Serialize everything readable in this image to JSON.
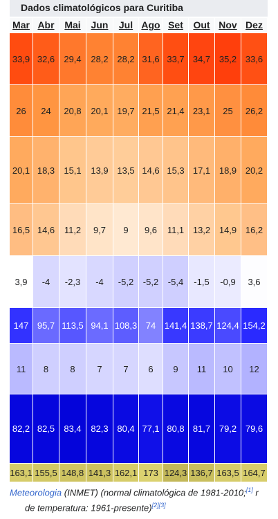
{
  "title": "Dados climatológicos para Curitiba",
  "months": [
    "Mar",
    "Abr",
    "Mai",
    "Jun",
    "Jul",
    "Ago",
    "Set",
    "Out",
    "Nov",
    "Dez"
  ],
  "rows": [
    {
      "cells": [
        "33,9",
        "32,6",
        "29,4",
        "28,2",
        "28,2",
        "31,6",
        "33,7",
        "34,7",
        "35,2",
        "33,6"
      ],
      "colors": [
        "#ff4c10",
        "#ff5c19",
        "#ff782c",
        "#ff8232",
        "#ff8232",
        "#ff6420",
        "#ff4e12",
        "#ff4510",
        "#ff3f0c",
        "#ff5014"
      ],
      "text_color": "#202122"
    },
    {
      "cells": [
        "26",
        "24",
        "20,8",
        "20,1",
        "19,7",
        "21,5",
        "21,4",
        "23,1",
        "25",
        "26,2"
      ],
      "colors": [
        "#ff8c3a",
        "#ff9541",
        "#ffa556",
        "#ffaa5c",
        "#ffac60",
        "#ffa050",
        "#ffa151",
        "#ff9949",
        "#ff9040",
        "#ff8b39"
      ],
      "text_color": "#202122"
    },
    {
      "cells": [
        "20,1",
        "18,3",
        "15,1",
        "13,9",
        "13,5",
        "14,6",
        "15,3",
        "17,1",
        "18,9",
        "20,2"
      ],
      "colors": [
        "#ffaa5e",
        "#ffb26d",
        "#ffc68c",
        "#ffcb97",
        "#ffcd99",
        "#ffc893",
        "#ffc48b",
        "#ffba7b",
        "#ffb06a",
        "#ffaa5e"
      ],
      "text_color": "#202122"
    },
    {
      "cells": [
        "16,5",
        "14,6",
        "11,2",
        "9,7",
        "9",
        "9,6",
        "11,1",
        "13,2",
        "14,9",
        "16,2"
      ],
      "colors": [
        "#ffbd82",
        "#ffc791",
        "#ffdbb8",
        "#ffe4c8",
        "#ffe9d2",
        "#ffe4c9",
        "#ffdbb9",
        "#ffd1a4",
        "#ffc88f",
        "#ffbf86"
      ],
      "text_color": "#202122"
    },
    {
      "cells": [
        "3,9",
        "-4",
        "-2,3",
        "-4",
        "-5,2",
        "-5,2",
        "-5,4",
        "-1,5",
        "-0,9",
        "3,6"
      ],
      "colors": [
        "#ffffff",
        "#d8d8ff",
        "#e3e3ff",
        "#d8d8ff",
        "#d0d0ff",
        "#d0d0ff",
        "#cfcfff",
        "#e8e8ff",
        "#ebebff",
        "#fdfdff"
      ],
      "text_color": "#202122"
    },
    {
      "cells": [
        "147",
        "95,7",
        "113,5",
        "94,1",
        "108,3",
        "74",
        "141,4",
        "138,7",
        "124,4",
        "154,2"
      ],
      "colors": [
        "#3232ff",
        "#6a6aff",
        "#5757ff",
        "#6b6bff",
        "#5d5dff",
        "#8282ff",
        "#3838ff",
        "#3b3bff",
        "#4a4aff",
        "#2a2aff"
      ],
      "text_color": "#ffffff"
    },
    {
      "cells": [
        "11",
        "8",
        "8",
        "7",
        "7",
        "6",
        "9",
        "11",
        "10",
        "12"
      ],
      "colors": [
        "#babaff",
        "#cfcfff",
        "#cfcfff",
        "#d6d6ff",
        "#d6d6ff",
        "#dedeff",
        "#c7c7ff",
        "#babaff",
        "#c1c1ff",
        "#b2b2ff"
      ],
      "text_color": "#202122"
    },
    {
      "cells": [
        "82,2",
        "82,5",
        "83,4",
        "82,3",
        "80,4",
        "77,1",
        "80,8",
        "81,7",
        "79,2",
        "79,6"
      ],
      "colors": [
        "#0606de",
        "#0606dd",
        "#0404da",
        "#0606dd",
        "#0a0ae2",
        "#1010e8",
        "#0909e1",
        "#0707df",
        "#0c0ce4",
        "#0b0be3"
      ],
      "text_color": "#ffffff"
    },
    {
      "cells": [
        "163,1",
        "155,5",
        "148,8",
        "141,3",
        "162,1",
        "173",
        "124,3",
        "136,7",
        "163,5",
        "164,7"
      ],
      "colors": [
        "#d6cc6a",
        "#d2c865",
        "#cfc462",
        "#ccc15f",
        "#d6cc69",
        "#dbd270",
        "#c3b859",
        "#c9bf5e",
        "#d6cc6a",
        "#d7cd6b"
      ],
      "text_color": "#202122"
    }
  ],
  "footer": {
    "link": "Meteorologia",
    "text1": "(INMET) (normal climatológica de 1981-2010;",
    "ref1": "[1]",
    "text1_end": "r",
    "text2": "de temperatura: 1961-presente)",
    "ref2": "[2]",
    "ref3": "[3]"
  }
}
